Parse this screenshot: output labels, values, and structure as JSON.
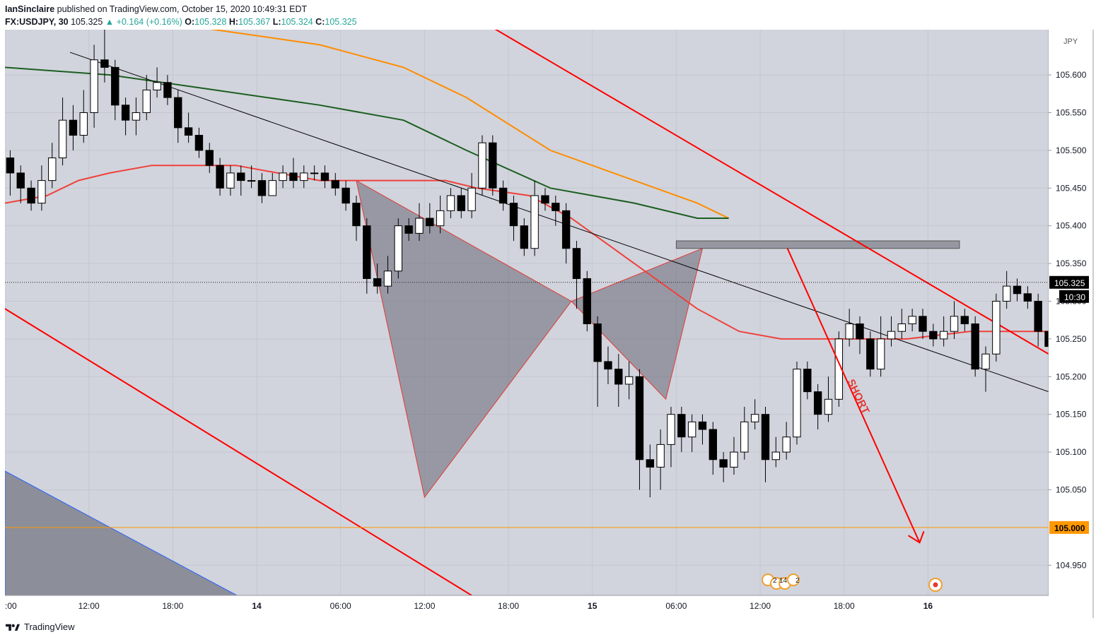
{
  "header": {
    "author": "IanSinclaire",
    "published": "published on TradingView.com, October 15, 2020 10:49:31 EDT",
    "symbol": "FX:USDJPY, 30",
    "last": "105.325",
    "change": "+0.164 (+0.16%)",
    "o_label": "O:",
    "o": "105.328",
    "h_label": "H:",
    "h": "105.367",
    "l_label": "L:",
    "l": "105.324",
    "c_label": "C:",
    "c": "105.325"
  },
  "footer": {
    "brand": "TradingView"
  },
  "colors": {
    "bg": "#d1d4dc",
    "up": "#ffffff",
    "down": "#000000",
    "trend_red": "#ff0000",
    "ma_red": "#f0403c",
    "ma_orange": "#ff8c00",
    "ma_green": "#1b5e20",
    "level_orange": "#ff9800"
  },
  "chart_data": {
    "type": "candlestick",
    "currency": "JPY",
    "y_range": [
      104.91,
      105.66
    ],
    "x_range": [
      0,
      99.5
    ],
    "y_ticks": [
      "105.600",
      "105.550",
      "105.500",
      "105.450",
      "105.400",
      "105.350",
      "105.300",
      "105.250",
      "105.200",
      "105.150",
      "105.100",
      "105.050",
      "104.950"
    ],
    "x_ticks": [
      {
        "label": ":00",
        "x": 0
      },
      {
        "label": "12:00",
        "x": 8
      },
      {
        "label": "18:00",
        "x": 16
      },
      {
        "label": "14",
        "x": 24
      },
      {
        "label": "06:00",
        "x": 32
      },
      {
        "label": "12:00",
        "x": 40
      },
      {
        "label": "18:00",
        "x": 48
      },
      {
        "label": "15",
        "x": 56
      },
      {
        "label": "06:00",
        "x": 64
      },
      {
        "label": "12:00",
        "x": 72
      },
      {
        "label": "18:00",
        "x": 80
      },
      {
        "label": "16",
        "x": 88
      }
    ],
    "last_price": "105.325",
    "countdown": "10:30",
    "level_price": "105.000",
    "candles": [
      [
        105.49,
        105.47,
        105.5,
        105.44
      ],
      [
        105.47,
        105.45,
        105.48,
        105.43
      ],
      [
        105.45,
        105.43,
        105.46,
        105.42
      ],
      [
        105.43,
        105.46,
        105.48,
        105.42
      ],
      [
        105.46,
        105.49,
        105.51,
        105.45
      ],
      [
        105.49,
        105.54,
        105.57,
        105.48
      ],
      [
        105.54,
        105.52,
        105.56,
        105.5
      ],
      [
        105.52,
        105.55,
        105.58,
        105.51
      ],
      [
        105.55,
        105.62,
        105.64,
        105.53
      ],
      [
        105.62,
        105.61,
        105.68,
        105.59
      ],
      [
        105.61,
        105.56,
        105.62,
        105.54
      ],
      [
        105.56,
        105.54,
        105.57,
        105.52
      ],
      [
        105.54,
        105.55,
        105.57,
        105.52
      ],
      [
        105.55,
        105.58,
        105.6,
        105.54
      ],
      [
        105.58,
        105.59,
        105.61,
        105.57
      ],
      [
        105.59,
        105.57,
        105.6,
        105.56
      ],
      [
        105.57,
        105.53,
        105.58,
        105.51
      ],
      [
        105.53,
        105.52,
        105.55,
        105.51
      ],
      [
        105.52,
        105.5,
        105.53,
        105.49
      ],
      [
        105.5,
        105.48,
        105.51,
        105.47
      ],
      [
        105.48,
        105.45,
        105.49,
        105.44
      ],
      [
        105.45,
        105.47,
        105.48,
        105.44
      ],
      [
        105.47,
        105.46,
        105.48,
        105.44
      ],
      [
        105.46,
        105.46,
        105.48,
        105.45
      ],
      [
        105.46,
        105.44,
        105.47,
        105.43
      ],
      [
        105.44,
        105.46,
        105.47,
        105.44
      ],
      [
        105.46,
        105.47,
        105.48,
        105.45
      ],
      [
        105.47,
        105.46,
        105.49,
        105.45
      ],
      [
        105.46,
        105.47,
        105.48,
        105.45
      ],
      [
        105.47,
        105.47,
        105.48,
        105.46
      ],
      [
        105.47,
        105.46,
        105.48,
        105.45
      ],
      [
        105.46,
        105.45,
        105.47,
        105.44
      ],
      [
        105.45,
        105.43,
        105.46,
        105.42
      ],
      [
        105.43,
        105.4,
        105.44,
        105.38
      ],
      [
        105.4,
        105.33,
        105.41,
        105.31
      ],
      [
        105.33,
        105.32,
        105.35,
        105.31
      ],
      [
        105.32,
        105.34,
        105.36,
        105.31
      ],
      [
        105.34,
        105.4,
        105.41,
        105.33
      ],
      [
        105.4,
        105.39,
        105.41,
        105.38
      ],
      [
        105.39,
        105.41,
        105.43,
        105.38
      ],
      [
        105.41,
        105.4,
        105.43,
        105.39
      ],
      [
        105.4,
        105.42,
        105.44,
        105.39
      ],
      [
        105.42,
        105.44,
        105.45,
        105.41
      ],
      [
        105.44,
        105.42,
        105.45,
        105.41
      ],
      [
        105.42,
        105.45,
        105.47,
        105.41
      ],
      [
        105.45,
        105.51,
        105.52,
        105.44
      ],
      [
        105.51,
        105.45,
        105.52,
        105.44
      ],
      [
        105.45,
        105.43,
        105.46,
        105.42
      ],
      [
        105.43,
        105.4,
        105.44,
        105.38
      ],
      [
        105.4,
        105.37,
        105.41,
        105.36
      ],
      [
        105.37,
        105.44,
        105.46,
        105.36
      ],
      [
        105.44,
        105.43,
        105.45,
        105.42
      ],
      [
        105.43,
        105.42,
        105.44,
        105.4
      ],
      [
        105.42,
        105.37,
        105.43,
        105.35
      ],
      [
        105.37,
        105.33,
        105.38,
        105.29
      ],
      [
        105.33,
        105.27,
        105.34,
        105.26
      ],
      [
        105.27,
        105.22,
        105.28,
        105.16
      ],
      [
        105.22,
        105.21,
        105.24,
        105.19
      ],
      [
        105.21,
        105.19,
        105.23,
        105.16
      ],
      [
        105.19,
        105.2,
        105.22,
        105.17
      ],
      [
        105.2,
        105.09,
        105.21,
        105.05
      ],
      [
        105.09,
        105.08,
        105.11,
        105.04
      ],
      [
        105.08,
        105.11,
        105.13,
        105.05
      ],
      [
        105.11,
        105.15,
        105.16,
        105.08
      ],
      [
        105.15,
        105.12,
        105.16,
        105.1
      ],
      [
        105.12,
        105.14,
        105.15,
        105.1
      ],
      [
        105.14,
        105.13,
        105.15,
        105.11
      ],
      [
        105.13,
        105.09,
        105.14,
        105.07
      ],
      [
        105.09,
        105.08,
        105.1,
        105.06
      ],
      [
        105.08,
        105.1,
        105.12,
        105.07
      ],
      [
        105.1,
        105.14,
        105.16,
        105.09
      ],
      [
        105.14,
        105.15,
        105.17,
        105.13
      ],
      [
        105.15,
        105.09,
        105.16,
        105.06
      ],
      [
        105.09,
        105.1,
        105.12,
        105.08
      ],
      [
        105.1,
        105.12,
        105.14,
        105.09
      ],
      [
        105.12,
        105.21,
        105.22,
        105.11
      ],
      [
        105.21,
        105.18,
        105.22,
        105.17
      ],
      [
        105.18,
        105.15,
        105.19,
        105.13
      ],
      [
        105.15,
        105.17,
        105.2,
        105.14
      ],
      [
        105.17,
        105.25,
        105.26,
        105.16
      ],
      [
        105.25,
        105.27,
        105.29,
        105.24
      ],
      [
        105.27,
        105.25,
        105.28,
        105.23
      ],
      [
        105.25,
        105.21,
        105.26,
        105.2
      ],
      [
        105.21,
        105.25,
        105.28,
        105.2
      ],
      [
        105.25,
        105.26,
        105.28,
        105.24
      ],
      [
        105.26,
        105.27,
        105.29,
        105.25
      ],
      [
        105.27,
        105.28,
        105.29,
        105.26
      ],
      [
        105.28,
        105.26,
        105.29,
        105.25
      ],
      [
        105.26,
        105.25,
        105.27,
        105.24
      ],
      [
        105.25,
        105.26,
        105.28,
        105.24
      ],
      [
        105.26,
        105.28,
        105.3,
        105.25
      ],
      [
        105.28,
        105.27,
        105.29,
        105.26
      ],
      [
        105.27,
        105.21,
        105.28,
        105.2
      ],
      [
        105.21,
        105.23,
        105.24,
        105.18
      ],
      [
        105.23,
        105.3,
        105.31,
        105.22
      ],
      [
        105.3,
        105.32,
        105.34,
        105.29
      ],
      [
        105.32,
        105.31,
        105.33,
        105.3
      ],
      [
        105.31,
        105.3,
        105.32,
        105.29
      ],
      [
        105.3,
        105.26,
        105.31,
        105.24
      ],
      [
        105.26,
        105.24,
        105.27,
        105.22
      ],
      [
        105.24,
        105.23,
        105.26,
        105.21
      ],
      [
        105.23,
        105.27,
        105.28,
        105.22
      ],
      [
        105.27,
        105.21,
        105.28,
        105.2
      ],
      [
        105.21,
        105.22,
        105.24,
        105.18
      ],
      [
        105.22,
        105.24,
        105.25,
        105.2
      ],
      [
        105.24,
        105.27,
        105.28,
        105.23
      ],
      [
        105.27,
        105.28,
        105.29,
        105.26
      ],
      [
        105.28,
        105.33,
        105.37,
        105.27
      ],
      [
        105.33,
        105.325,
        105.367,
        105.324
      ]
    ],
    "ma_fast": [
      [
        0,
        105.43
      ],
      [
        4,
        105.44
      ],
      [
        7,
        105.46
      ],
      [
        10,
        105.47
      ],
      [
        14,
        105.48
      ],
      [
        18,
        105.48
      ],
      [
        22,
        105.48
      ],
      [
        26,
        105.47
      ],
      [
        30,
        105.46
      ],
      [
        34,
        105.46
      ],
      [
        38,
        105.46
      ],
      [
        42,
        105.46
      ],
      [
        45,
        105.45
      ],
      [
        50,
        105.44
      ],
      [
        54,
        105.41
      ],
      [
        58,
        105.37
      ],
      [
        62,
        105.33
      ],
      [
        66,
        105.29
      ],
      [
        70,
        105.26
      ],
      [
        74,
        105.25
      ],
      [
        80,
        105.25
      ],
      [
        86,
        105.25
      ],
      [
        92,
        105.26
      ],
      [
        97,
        105.26
      ],
      [
        101,
        105.26
      ]
    ],
    "ma_slow_orange": [
      [
        0,
        105.69
      ],
      [
        10,
        105.68
      ],
      [
        20,
        105.66
      ],
      [
        30,
        105.64
      ],
      [
        38,
        105.61
      ],
      [
        44,
        105.57
      ],
      [
        52,
        105.5
      ],
      [
        60,
        105.46
      ],
      [
        66,
        105.43
      ],
      [
        69,
        105.41
      ]
    ],
    "ma_slow_green": [
      [
        0,
        105.61
      ],
      [
        10,
        105.6
      ],
      [
        20,
        105.58
      ],
      [
        30,
        105.56
      ],
      [
        38,
        105.54
      ],
      [
        44,
        105.5
      ],
      [
        52,
        105.45
      ],
      [
        60,
        105.43
      ],
      [
        66,
        105.41
      ],
      [
        69,
        105.41
      ]
    ],
    "trend_black": [
      [
        6.2,
        105.63
      ],
      [
        99.5,
        105.18
      ]
    ],
    "trend_red_upper": [
      [
        26,
        105.83
      ],
      [
        99.5,
        105.23
      ]
    ],
    "trend_red_lower": [
      [
        0,
        105.29
      ],
      [
        48,
        104.88
      ]
    ],
    "pattern_left": [
      [
        33.5,
        105.46
      ],
      [
        40,
        105.04
      ],
      [
        54,
        105.3
      ]
    ],
    "pattern_right": [
      [
        54,
        105.3
      ],
      [
        63,
        105.17
      ],
      [
        66.5,
        105.37
      ]
    ],
    "zone": {
      "x0": 64,
      "x1": 91,
      "y0": 105.37,
      "y1": 105.38
    },
    "short_arrow": [
      [
        74.6,
        105.37
      ],
      [
        87.2,
        104.98
      ]
    ],
    "short_label": "SHORT",
    "events_label_1": "2",
    "events_label_2": "14",
    "events_label_3": "2"
  }
}
